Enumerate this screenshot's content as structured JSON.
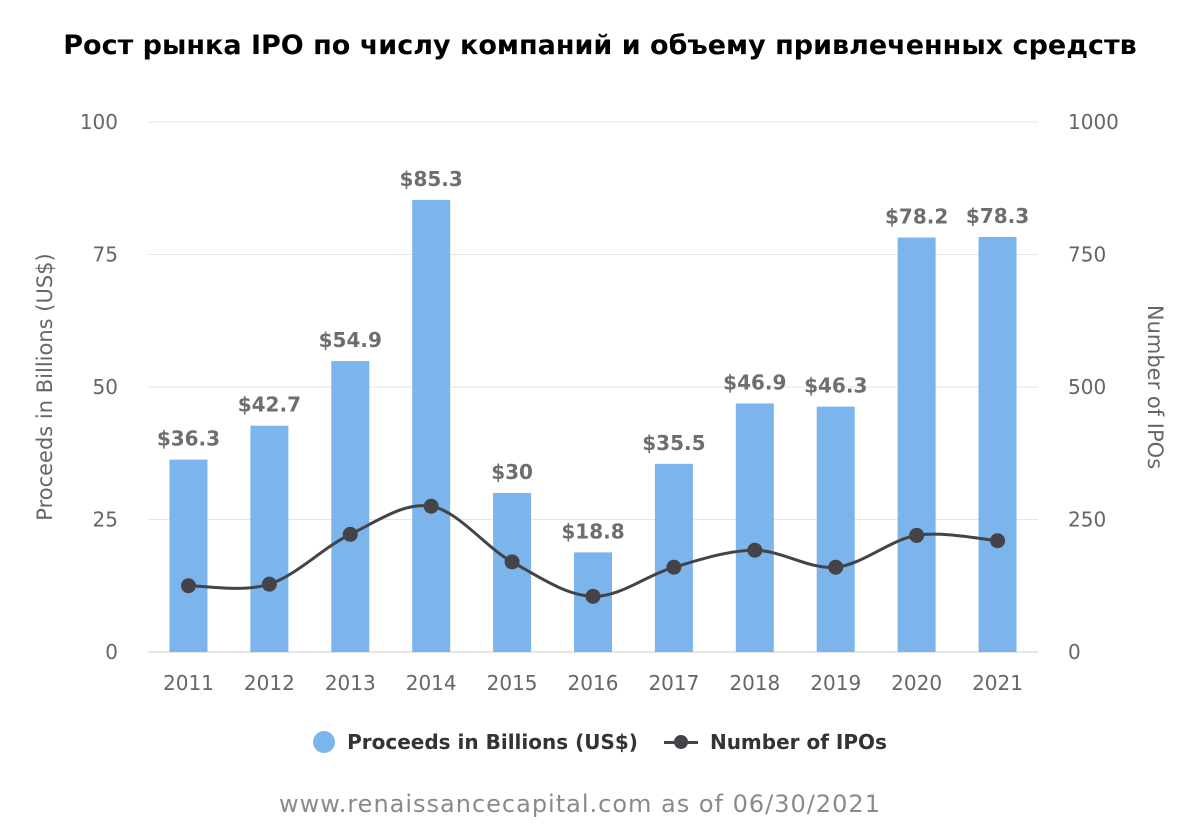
{
  "chart_data": {
    "type": "bar",
    "title": "Рост рынка IPO по числу компаний и объему привлеченных средств",
    "categories": [
      "2011",
      "2012",
      "2013",
      "2014",
      "2015",
      "2016",
      "2017",
      "2018",
      "2019",
      "2020",
      "2021"
    ],
    "series": [
      {
        "name": "Proceeds in Billions (US$)",
        "type": "bar",
        "axis": "left",
        "color": "#7cb5ec",
        "values": [
          36.3,
          42.7,
          54.9,
          85.3,
          30,
          18.8,
          35.5,
          46.9,
          46.3,
          78.2,
          78.3
        ],
        "labels": [
          "$36.3",
          "$42.7",
          "$54.9",
          "$85.3",
          "$30",
          "$18.8",
          "$35.5",
          "$46.9",
          "$46.3",
          "$78.2",
          "$78.3"
        ]
      },
      {
        "name": "Number of IPOs",
        "type": "line",
        "axis": "right",
        "color": "#434348",
        "values": [
          125,
          128,
          222,
          275,
          170,
          105,
          160,
          192,
          160,
          220,
          210
        ]
      }
    ],
    "ylabel_left": "Proceeds in Billions (US$)",
    "ylabel_right": "Number of IPOs",
    "ylim_left": [
      0,
      100
    ],
    "ylim_right": [
      0,
      1000
    ],
    "yticks_left": [
      "0",
      "25",
      "50",
      "75",
      "100"
    ],
    "yticks_right": [
      "0",
      "250",
      "500",
      "750",
      "1000"
    ],
    "grid": true,
    "legend_position": "bottom"
  },
  "source_text": "www.renaissancecapital.com as of 06/30/2021"
}
